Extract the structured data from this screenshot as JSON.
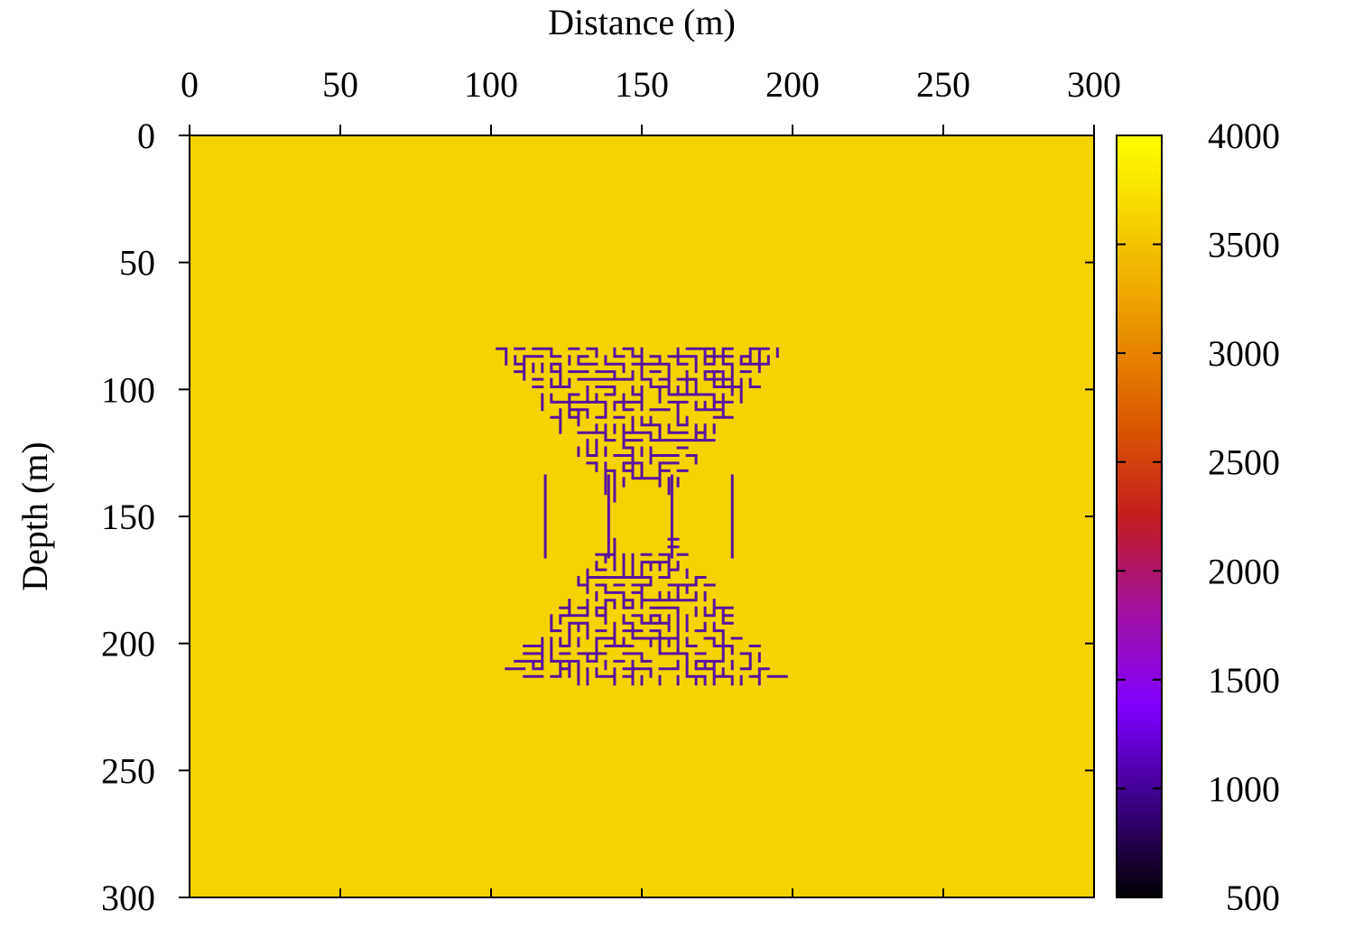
{
  "chart_data": {
    "type": "heatmap",
    "title": "",
    "xlabel": "Distance (m)",
    "ylabel": "Depth (m)",
    "x_axis_position": "top",
    "y_axis_inverted": true,
    "xlim": [
      0,
      300
    ],
    "ylim": [
      0,
      300
    ],
    "x_ticks": [
      "0",
      "50",
      "100",
      "150",
      "200",
      "250",
      "300"
    ],
    "y_ticks": [
      "0",
      "50",
      "100",
      "150",
      "200",
      "250",
      "300"
    ],
    "x_tick_values": [
      0,
      50,
      100,
      150,
      200,
      250,
      300
    ],
    "y_tick_values": [
      0,
      50,
      100,
      150,
      200,
      250,
      300
    ],
    "grid": false,
    "background_value": 3800,
    "background_color": "#f5d300",
    "feature": {
      "description_color": "#5a12a0",
      "value": 1100,
      "x_range": [
        102,
        196
      ],
      "y_range": [
        78,
        220
      ],
      "waist_x": [
        118,
        139,
        160,
        180
      ],
      "waist_depth": 150
    },
    "colorbar": {
      "min": 500,
      "max": 4000,
      "ticks": [
        "500",
        "1000",
        "1500",
        "2000",
        "2500",
        "3000",
        "3500",
        "4000"
      ],
      "tick_values": [
        500,
        1000,
        1500,
        2000,
        2500,
        3000,
        3500,
        4000
      ],
      "palette": [
        "#000000",
        "#3b0086",
        "#8000ff",
        "#a010a0",
        "#c41e1e",
        "#dc5a00",
        "#ea9400",
        "#f5cc00",
        "#ffff00"
      ]
    }
  }
}
